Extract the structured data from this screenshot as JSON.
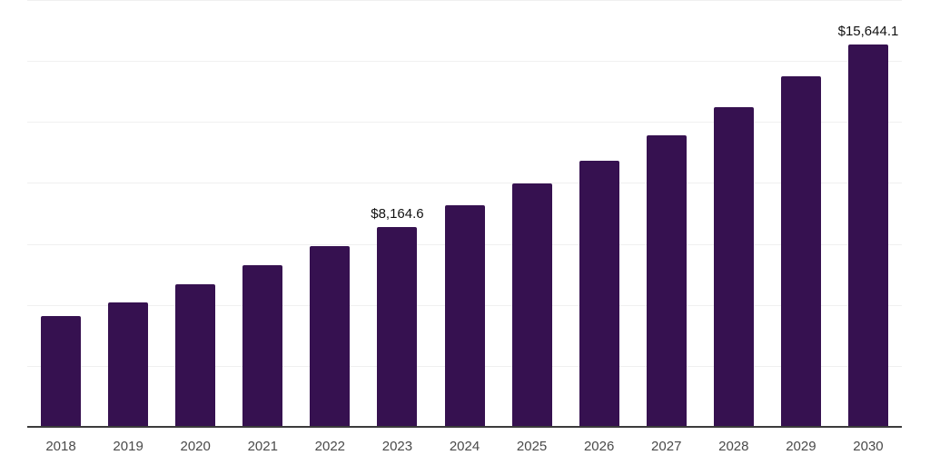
{
  "chart_data": {
    "type": "bar",
    "title": "",
    "xlabel": "",
    "ylabel": "",
    "categories": [
      "2018",
      "2019",
      "2020",
      "2021",
      "2022",
      "2023",
      "2024",
      "2025",
      "2026",
      "2027",
      "2028",
      "2029",
      "2030"
    ],
    "values": [
      4520,
      5050,
      5790,
      6575,
      7355,
      8164.6,
      9060,
      9955,
      10885,
      11925,
      13075,
      14340,
      15644.1
    ],
    "data_labels": [
      {
        "category": "2023",
        "text": "$8,164.6"
      },
      {
        "category": "2030",
        "text": "$15,644.1"
      }
    ],
    "ylim": [
      0,
      17500
    ],
    "gridline_step": 2500,
    "grid": "horizontal",
    "legend_position": "none",
    "y_axis_labels_visible": false
  },
  "colors": {
    "bar": "#361150",
    "gridline": "#f0f0f0",
    "axis_line": "#3b3b3b",
    "tick_label": "#4a4a4a",
    "data_label": "#111111",
    "background": "#ffffff"
  }
}
